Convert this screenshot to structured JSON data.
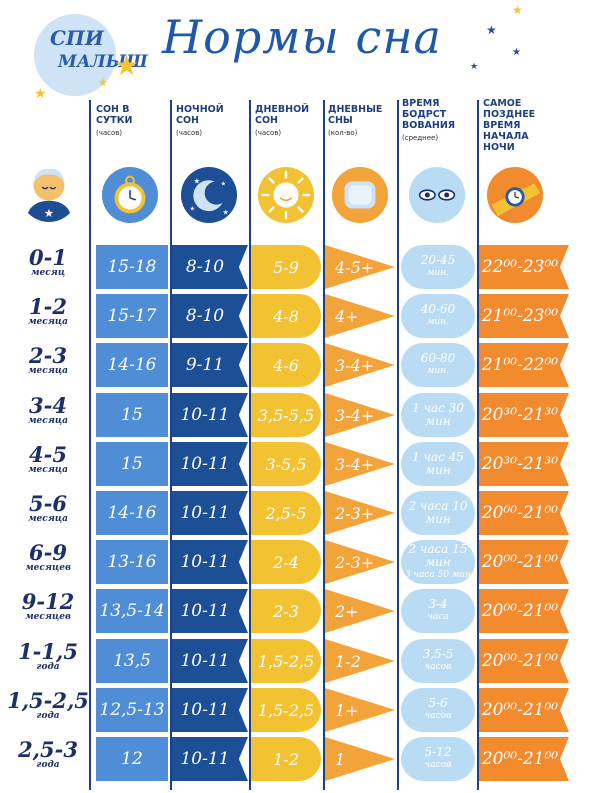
{
  "logo": {
    "line1": "СПИ",
    "line2": "МАЛЫШ"
  },
  "title": "Нормы сна",
  "columns": [
    {
      "header": "СОН В СУТКИ",
      "unit": "(часов)"
    },
    {
      "header": "НОЧНОЙ СОН",
      "unit": "(часов)"
    },
    {
      "header": "ДНЕВНОЙ СОН",
      "unit": "(часов)"
    },
    {
      "header": "ДНЕВНЫЕ СНЫ",
      "unit": "(кол-во)"
    },
    {
      "header": "ВРЕМЯ БОДРСТ ВОВАНИЯ",
      "unit": "(среднее)"
    },
    {
      "header": "САМОЕ ПОЗДНЕЕ ВРЕМЯ НАЧАЛА НОЧИ",
      "unit": ""
    }
  ],
  "rows": [
    {
      "age": "0-1",
      "age_unit": "месяц",
      "total": "15-18",
      "night": "8-10",
      "day": "5-9",
      "naps": "4-5+",
      "wake": "20-45",
      "wake_unit": "мин.",
      "latest": "22⁰⁰-23⁰⁰"
    },
    {
      "age": "1-2",
      "age_unit": "месяца",
      "total": "15-17",
      "night": "8-10",
      "day": "4-8",
      "naps": "4+",
      "wake": "40-60",
      "wake_unit": "мин.",
      "latest": "21⁰⁰-23⁰⁰"
    },
    {
      "age": "2-3",
      "age_unit": "месяца",
      "total": "14-16",
      "night": "9-11",
      "day": "4-6",
      "naps": "3-4+",
      "wake": "60-80",
      "wake_unit": "мин.",
      "latest": "21⁰⁰-22⁰⁰"
    },
    {
      "age": "3-4",
      "age_unit": "месяца",
      "total": "15",
      "night": "10-11",
      "day": "3,5-5,5",
      "naps": "3-4+",
      "wake": "1 час 30 мин",
      "wake_unit": "",
      "latest": "20³⁰-21³⁰"
    },
    {
      "age": "4-5",
      "age_unit": "месяца",
      "total": "15",
      "night": "10-11",
      "day": "3-5,5",
      "naps": "3-4+",
      "wake": "1 час 45 мин",
      "wake_unit": "",
      "latest": "20³⁰-21³⁰"
    },
    {
      "age": "5-6",
      "age_unit": "месяца",
      "total": "14-16",
      "night": "10-11",
      "day": "2,5-5",
      "naps": "2-3+",
      "wake": "2 часа 10 мин",
      "wake_unit": "",
      "latest": "20⁰⁰-21⁰⁰"
    },
    {
      "age": "6-9",
      "age_unit": "месяцев",
      "total": "13-16",
      "night": "10-11",
      "day": "2-4",
      "naps": "2-3+",
      "wake": "2 часа 15 мин",
      "wake_unit": "3 часа 50 мин",
      "latest": "20⁰⁰-21⁰⁰"
    },
    {
      "age": "9-12",
      "age_unit": "месяцев",
      "total": "13,5-14",
      "night": "10-11",
      "day": "2-3",
      "naps": "2+",
      "wake": "3-4",
      "wake_unit": "часа",
      "latest": "20⁰⁰-21⁰⁰"
    },
    {
      "age": "1-1,5",
      "age_unit": "года",
      "total": "13,5",
      "night": "10-11",
      "day": "1,5-2,5",
      "naps": "1-2",
      "wake": "3,5-5",
      "wake_unit": "часов",
      "latest": "20⁰⁰-21⁰⁰"
    },
    {
      "age": "1,5-2,5",
      "age_unit": "года",
      "total": "12,5-13",
      "night": "10-11",
      "day": "1,5-2,5",
      "naps": "1+",
      "wake": "5-6",
      "wake_unit": "часов",
      "latest": "20⁰⁰-21⁰⁰"
    },
    {
      "age": "2,5-3",
      "age_unit": "года",
      "total": "12",
      "night": "10-11",
      "day": "1-2",
      "naps": "1",
      "wake": "5-12",
      "wake_unit": "часов",
      "latest": "20⁰⁰-21⁰⁰"
    }
  ],
  "colors": {
    "total": "#4f8ed6",
    "night": "#1d4f97",
    "day": "#f3c233",
    "naps": "#f2a33a",
    "wake": "#b9dcf4",
    "latest": "#f28a2e"
  },
  "icons": [
    "baby-icon",
    "pocket-watch-icon",
    "moon-icon",
    "sun-icon",
    "pillow-icon",
    "eyes-icon",
    "wrist-watch-icon"
  ]
}
